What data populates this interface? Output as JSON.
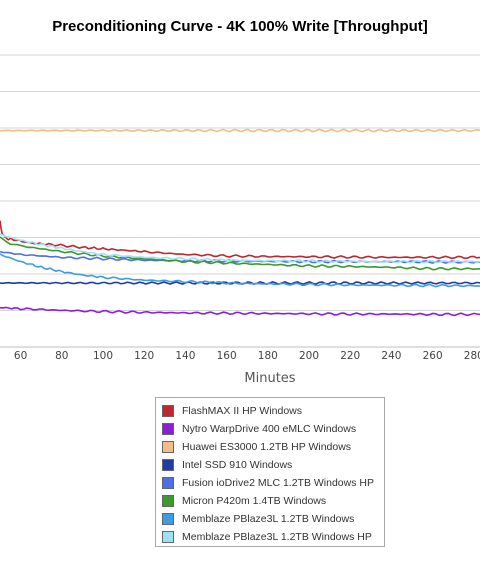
{
  "chart_data": {
    "type": "line",
    "title": "Preconditioning Curve - 4K 100% Write [Throughput]",
    "xlabel": "Minutes",
    "ylabel": "",
    "x_ticks": [
      60,
      80,
      100,
      120,
      140,
      160,
      180,
      200,
      220,
      240,
      260,
      280
    ],
    "xlim": [
      50,
      283
    ],
    "grid": true,
    "legend_position": "bottom-center",
    "series": [
      {
        "name": "FlashMAX II HP Windows",
        "color": "#c0262d",
        "x": [
          50,
          51,
          54,
          58,
          65,
          75,
          90,
          100,
          110,
          120,
          140,
          160,
          180,
          200,
          220,
          240,
          260,
          283
        ],
        "y": [
          0.42,
          0.37,
          0.355,
          0.35,
          0.34,
          0.335,
          0.325,
          0.32,
          0.315,
          0.31,
          0.3,
          0.295,
          0.293,
          0.292,
          0.291,
          0.29,
          0.29,
          0.29
        ]
      },
      {
        "name": "Nytro WarpDrive 400 eMLC Windows",
        "color": "#8b1ed8",
        "x": [
          50,
          60,
          80,
          100,
          120,
          140,
          160,
          180,
          200,
          220,
          240,
          260,
          283
        ],
        "y": [
          0.114,
          0.11,
          0.104,
          0.1,
          0.097,
          0.095,
          0.094,
          0.093,
          0.092,
          0.091,
          0.091,
          0.09,
          0.09
        ]
      },
      {
        "name": "Huawei ES3000 1.2TB HP Windows",
        "color": "#f1bc85",
        "x": [
          50,
          283
        ],
        "y": [
          0.735,
          0.735
        ]
      },
      {
        "name": "Intel SSD 910 Windows",
        "color": "#1f3ca6",
        "x": [
          50,
          283
        ],
        "y": [
          0.2,
          0.2
        ]
      },
      {
        "name": "Fusion ioDrive2 MLC 1.2TB Windows HP",
        "color": "#4c6ee6",
        "x": [
          50,
          60,
          80,
          100,
          120,
          140,
          160,
          180,
          200,
          220,
          240,
          260,
          283
        ],
        "y": [
          0.31,
          0.3,
          0.29,
          0.285,
          0.28,
          0.278,
          0.277,
          0.276,
          0.275,
          0.275,
          0.275,
          0.274,
          0.273
        ]
      },
      {
        "name": "Micron P420m 1.4TB Windows",
        "color": "#3b9a2a",
        "x": [
          50,
          55,
          60,
          80,
          100,
          120,
          140,
          160,
          180,
          200,
          220,
          240,
          260,
          283
        ],
        "y": [
          0.36,
          0.34,
          0.33,
          0.31,
          0.295,
          0.285,
          0.275,
          0.27,
          0.265,
          0.26,
          0.258,
          0.255,
          0.25,
          0.25
        ]
      },
      {
        "name": "Memblaze PBlaze3L 1.2TB Windows",
        "color": "#3d9be4",
        "x": [
          50,
          60,
          70,
          80,
          90,
          100,
          120,
          140,
          160,
          180,
          200,
          220,
          240,
          260,
          283
        ],
        "y": [
          0.3,
          0.275,
          0.255,
          0.24,
          0.228,
          0.22,
          0.21,
          0.205,
          0.2,
          0.197,
          0.195,
          0.193,
          0.192,
          0.191,
          0.19
        ]
      },
      {
        "name": "Memblaze PBlaze3L 1.2TB Windows HP",
        "color": "#9ee1f6",
        "x": [
          50,
          60,
          70,
          80,
          90,
          100,
          120,
          140,
          160,
          180,
          200,
          220,
          240,
          260,
          283
        ],
        "y": [
          0.37,
          0.35,
          0.335,
          0.322,
          0.31,
          0.3,
          0.29,
          0.285,
          0.28,
          0.278,
          0.277,
          0.276,
          0.275,
          0.275,
          0.275
        ]
      }
    ]
  }
}
